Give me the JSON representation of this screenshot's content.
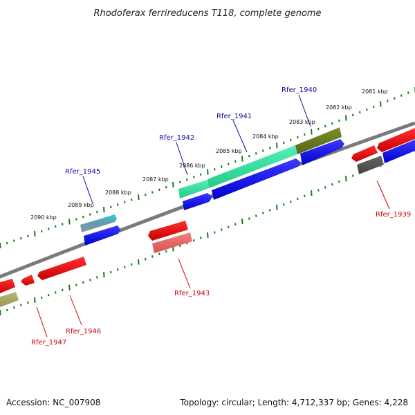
{
  "title": "Rhodoferax ferrireducens T118, complete genome",
  "accession": "Accession: NC_007908",
  "summary": "Topology: circular; Length: 4,712,337 bp; Genes: 4,228",
  "kbp_labels": [
    "2090 kbp",
    "2089 kbp",
    "2088 kbp",
    "2087 kbp",
    "2086 kbp",
    "2085 kbp",
    "2084 kbp",
    "2083 kbp",
    "2082 kbp",
    "2081 kbp"
  ],
  "gene_labels": [
    {
      "text": "Rfer_1945",
      "strand": "forward"
    },
    {
      "text": "Rfer_1942",
      "strand": "forward"
    },
    {
      "text": "Rfer_1941",
      "strand": "forward"
    },
    {
      "text": "Rfer_1940",
      "strand": "forward"
    },
    {
      "text": "Rfer_1939",
      "strand": "reverse"
    },
    {
      "text": "Rfer_1943",
      "strand": "reverse"
    },
    {
      "text": "Rfer_1946",
      "strand": "reverse"
    },
    {
      "text": "Rfer_1947",
      "strand": "reverse"
    }
  ],
  "colors": {
    "forward_label": "#0a0aa0",
    "reverse_label": "#cc0000",
    "backbone": "#777777",
    "ticks": "#1a7a1a",
    "cds_blue": "#0a0ae6",
    "cds_red": "#ee0000",
    "cds_pink": "#ee7777",
    "cds_green": "#33dd99",
    "cds_olive": "#667a22",
    "cds_cyan": "#22bbcc",
    "cds_khaki": "#aaaa66",
    "cds_gray": "#555555"
  }
}
